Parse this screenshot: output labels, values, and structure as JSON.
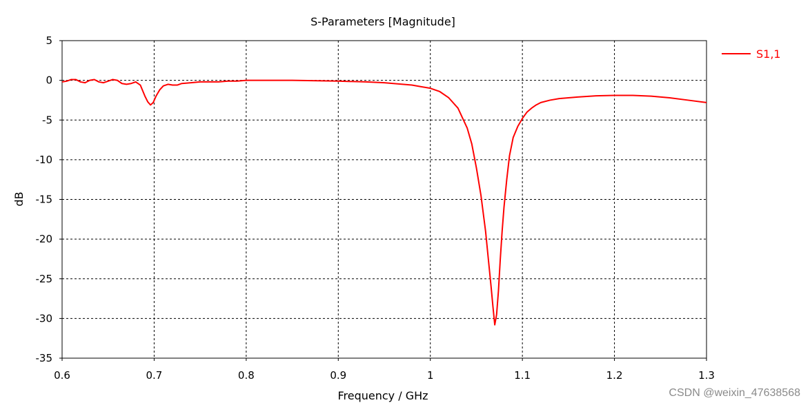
{
  "chart_data": {
    "type": "line",
    "title": "S-Parameters [Magnitude]",
    "xlabel": "Frequency / GHz",
    "ylabel": "dB",
    "xlim": [
      0.6,
      1.3
    ],
    "ylim": [
      -35,
      5
    ],
    "xticks": [
      0.6,
      0.7,
      0.8,
      0.9,
      1.0,
      1.1,
      1.2,
      1.3
    ],
    "xtick_labels": [
      "0.6",
      "0.7",
      "0.8",
      "0.9",
      "1",
      "1.1",
      "1.2",
      "1.3"
    ],
    "yticks": [
      5,
      0,
      -5,
      -10,
      -15,
      -20,
      -25,
      -30,
      -35
    ],
    "ytick_labels": [
      "5",
      "0",
      "-5",
      "-10",
      "-15",
      "-20",
      "-25",
      "-30",
      "-35"
    ],
    "grid": true,
    "legend": "right",
    "series": [
      {
        "name": "S1,1",
        "color": "#ff0000",
        "x": [
          0.6,
          0.605,
          0.61,
          0.615,
          0.62,
          0.625,
          0.63,
          0.635,
          0.64,
          0.645,
          0.65,
          0.655,
          0.66,
          0.665,
          0.67,
          0.675,
          0.68,
          0.685,
          0.69,
          0.693,
          0.696,
          0.699,
          0.702,
          0.706,
          0.71,
          0.715,
          0.72,
          0.725,
          0.73,
          0.74,
          0.75,
          0.76,
          0.77,
          0.78,
          0.79,
          0.8,
          0.85,
          0.9,
          0.93,
          0.95,
          0.97,
          0.98,
          0.99,
          1.0,
          1.01,
          1.02,
          1.03,
          1.04,
          1.045,
          1.05,
          1.055,
          1.06,
          1.063,
          1.066,
          1.068,
          1.07,
          1.072,
          1.074,
          1.076,
          1.078,
          1.08,
          1.083,
          1.086,
          1.09,
          1.095,
          1.1,
          1.105,
          1.11,
          1.115,
          1.12,
          1.13,
          1.14,
          1.15,
          1.16,
          1.18,
          1.2,
          1.22,
          1.24,
          1.26,
          1.28,
          1.3
        ],
        "y": [
          -0.2,
          -0.1,
          0.1,
          0.1,
          -0.2,
          -0.3,
          0.0,
          0.1,
          -0.2,
          -0.3,
          -0.1,
          0.1,
          0.0,
          -0.4,
          -0.5,
          -0.4,
          -0.2,
          -0.6,
          -2.0,
          -2.7,
          -3.1,
          -2.8,
          -2.0,
          -1.2,
          -0.7,
          -0.5,
          -0.6,
          -0.6,
          -0.4,
          -0.3,
          -0.2,
          -0.2,
          -0.2,
          -0.1,
          -0.1,
          0.0,
          0.0,
          -0.1,
          -0.2,
          -0.3,
          -0.5,
          -0.6,
          -0.8,
          -1.0,
          -1.4,
          -2.2,
          -3.5,
          -6.0,
          -8.0,
          -11.0,
          -14.5,
          -19.0,
          -22.5,
          -26.0,
          -28.5,
          -30.8,
          -29.5,
          -26.5,
          -22.5,
          -19.0,
          -16.0,
          -12.5,
          -9.5,
          -7.2,
          -5.8,
          -4.8,
          -4.0,
          -3.5,
          -3.1,
          -2.8,
          -2.5,
          -2.3,
          -2.2,
          -2.1,
          -1.95,
          -1.9,
          -1.9,
          -2.0,
          -2.2,
          -2.5,
          -2.8
        ]
      }
    ]
  },
  "watermark": "CSDN @weixin_47638568"
}
